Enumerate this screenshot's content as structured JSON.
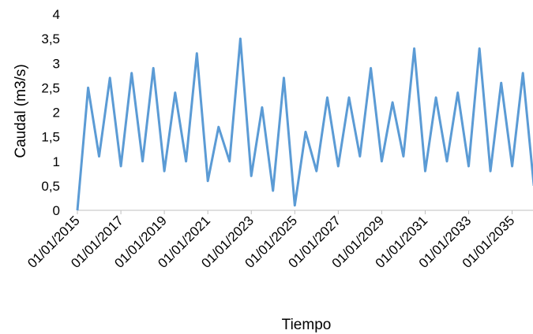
{
  "chart_data": {
    "type": "line",
    "title": "",
    "xlabel": "Tiempo",
    "ylabel": "Caudal (m3/s)",
    "ylim": [
      0,
      4
    ],
    "xlim": [
      "01/01/2015",
      "31/12/2035"
    ],
    "grid": false,
    "legend": "none",
    "y_ticks": [
      "0",
      "0,5",
      "1",
      "1,5",
      "2",
      "2,5",
      "3",
      "3,5",
      "4"
    ],
    "x_ticks": [
      "01/01/2015",
      "01/01/2017",
      "01/01/2019",
      "01/01/2021",
      "01/01/2023",
      "01/01/2025",
      "01/01/2027",
      "01/01/2029",
      "01/01/2031",
      "01/01/2033",
      "01/01/2035"
    ],
    "series": [
      {
        "color": "#5B9BD5",
        "x": [
          "01/01/2015",
          "01/07/2015",
          "01/01/2016",
          "01/07/2016",
          "01/01/2017",
          "01/07/2017",
          "01/01/2018",
          "01/07/2018",
          "01/01/2019",
          "01/07/2019",
          "01/01/2020",
          "01/07/2020",
          "01/01/2021",
          "01/07/2021",
          "01/01/2022",
          "01/07/2022",
          "01/01/2023",
          "01/07/2023",
          "01/01/2024",
          "01/07/2024",
          "01/01/2025",
          "01/07/2025",
          "01/01/2026",
          "01/07/2026",
          "01/01/2027",
          "01/07/2027",
          "01/01/2028",
          "01/07/2028",
          "01/01/2029",
          "01/07/2029",
          "01/01/2030",
          "01/07/2030",
          "01/01/2031",
          "01/07/2031",
          "01/01/2032",
          "01/07/2032",
          "01/01/2033",
          "01/07/2033",
          "01/01/2034",
          "01/07/2034",
          "01/01/2035",
          "01/07/2035",
          "01/01/2036"
        ],
        "y": [
          0.0,
          2.5,
          1.1,
          2.7,
          0.9,
          2.8,
          1.0,
          2.9,
          0.8,
          2.4,
          1.0,
          3.2,
          0.6,
          1.7,
          1.0,
          3.5,
          0.7,
          2.1,
          0.4,
          2.7,
          0.1,
          1.6,
          0.8,
          2.3,
          0.9,
          2.3,
          1.1,
          2.9,
          1.0,
          2.2,
          1.1,
          3.3,
          0.8,
          2.3,
          1.0,
          2.4,
          0.9,
          3.3,
          0.8,
          2.6,
          0.9,
          2.8,
          0.5
        ]
      }
    ]
  }
}
